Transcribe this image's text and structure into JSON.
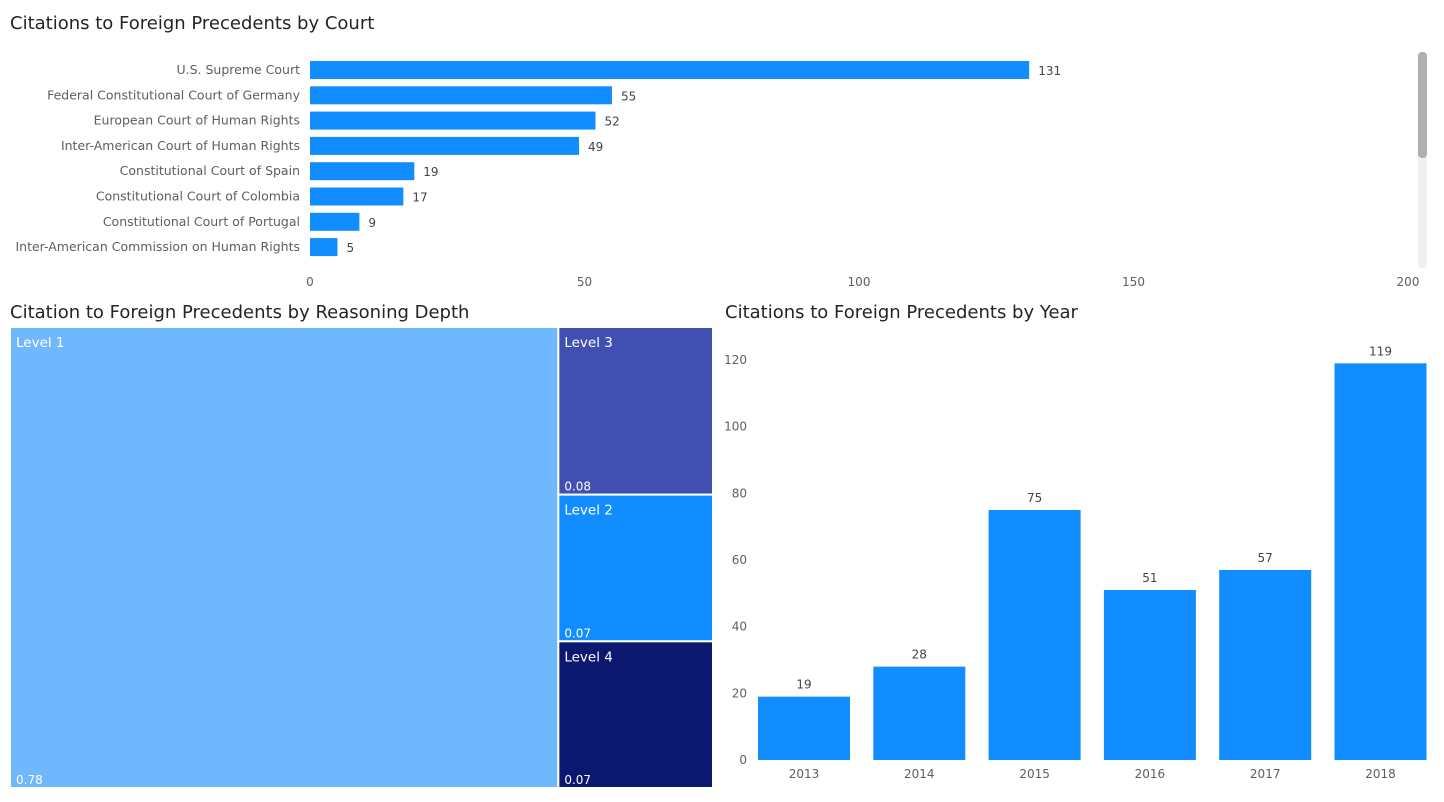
{
  "colors": {
    "bar": "#118dff",
    "level1": "#6fb8fd",
    "level2": "#118dff",
    "level3": "#414fb0",
    "level4": "#0c1870"
  },
  "titles": {
    "court": "Citations to Foreign Precedents by Court",
    "depth": "Citation to Foreign Precedents by Reasoning Depth",
    "year": "Citations to Foreign Precedents by Year"
  },
  "chart_data": [
    {
      "type": "bar",
      "orientation": "horizontal",
      "title": "Citations to Foreign Precedents by Court",
      "categories": [
        "U.S. Supreme Court",
        "Federal Constitutional Court of Germany",
        "European Court of Human Rights",
        "Inter-American Court of Human Rights",
        "Constitutional Court of Spain",
        "Constitutional Court of Colombia",
        "Constitutional Court of Portugal",
        "Inter-American Commission on Human Rights"
      ],
      "values": [
        131,
        55,
        52,
        49,
        19,
        17,
        9,
        5
      ],
      "xlim": [
        0,
        200
      ],
      "xticks": [
        0,
        50,
        100,
        150,
        200
      ],
      "grid": false
    },
    {
      "type": "treemap",
      "title": "Citation to Foreign Precedents by Reasoning Depth",
      "categories": [
        "Level 1",
        "Level 3",
        "Level 2",
        "Level 4"
      ],
      "values": [
        0.78,
        0.08,
        0.07,
        0.07
      ],
      "value_labels": [
        "0.78",
        "0.08",
        "0.07",
        "0.07"
      ]
    },
    {
      "type": "bar",
      "title": "Citations to Foreign Precedents by Year",
      "categories": [
        "2013",
        "2014",
        "2015",
        "2016",
        "2017",
        "2018"
      ],
      "values": [
        19,
        28,
        75,
        51,
        57,
        119
      ],
      "ylim": [
        0,
        120
      ],
      "yticks": [
        0,
        20,
        40,
        60,
        80,
        100,
        120
      ],
      "grid": false
    }
  ]
}
